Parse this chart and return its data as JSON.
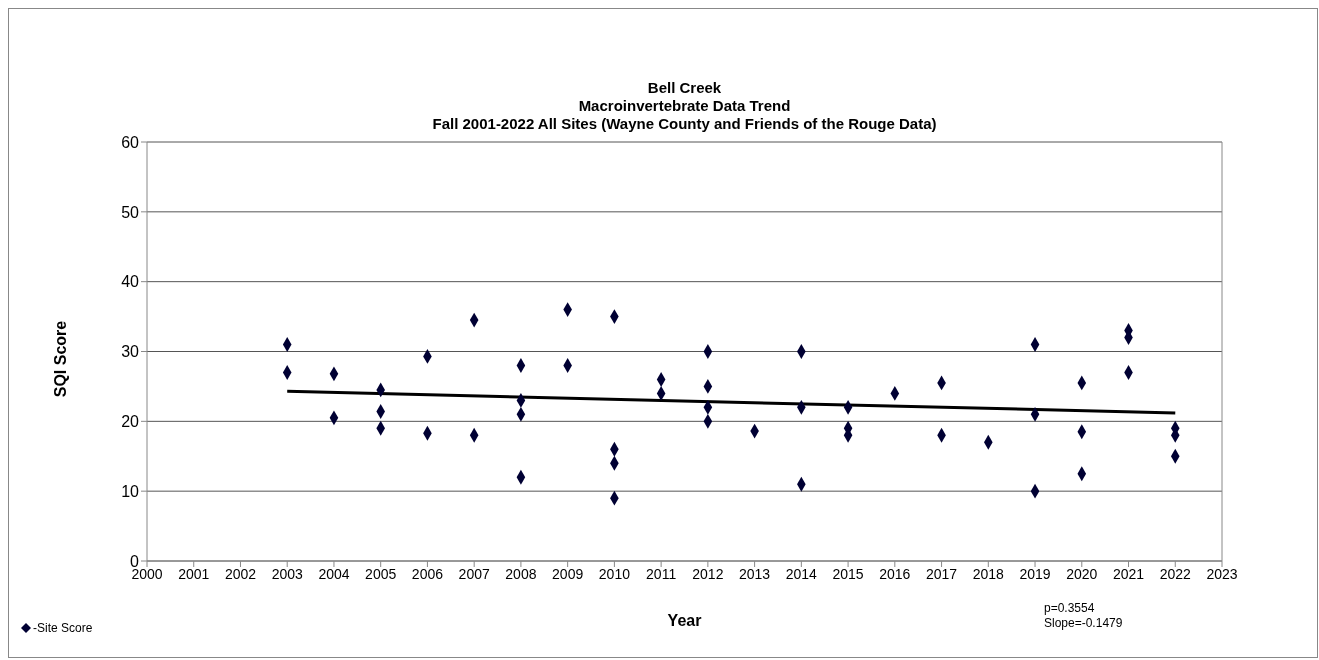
{
  "chart_data": {
    "type": "scatter",
    "title": "Bell Creek\nMacroinvertebrate Data Trend\nFall 2001-2022 All Sites (Wayne County and Friends of the Rouge Data)",
    "xlabel": "Year",
    "ylabel": "SQI Score",
    "xlim": [
      2000,
      2023
    ],
    "xticks": [
      2000,
      2001,
      2002,
      2003,
      2004,
      2005,
      2006,
      2007,
      2008,
      2009,
      2010,
      2011,
      2012,
      2013,
      2014,
      2015,
      2016,
      2017,
      2018,
      2019,
      2020,
      2021,
      2022,
      2023
    ],
    "ylim": [
      0,
      60
    ],
    "yticks": [
      0,
      10,
      20,
      30,
      40,
      50,
      60
    ],
    "grid": "y",
    "legend": "bottom left",
    "marker": "diamond",
    "series": [
      {
        "name": "-Site Score",
        "color": "#000033",
        "x": [
          2003,
          2003,
          2004,
          2004,
          2005,
          2005,
          2005,
          2006,
          2006,
          2007,
          2007,
          2008,
          2008,
          2008,
          2008,
          2009,
          2009,
          2010,
          2010,
          2010,
          2010,
          2011,
          2011,
          2012,
          2012,
          2012,
          2012,
          2013,
          2014,
          2014,
          2014,
          2015,
          2015,
          2015,
          2016,
          2017,
          2017,
          2018,
          2019,
          2019,
          2019,
          2020,
          2020,
          2020,
          2021,
          2021,
          2021,
          2022,
          2022,
          2022
        ],
        "values": [
          31,
          27,
          26.8,
          20.5,
          24.5,
          21.4,
          19,
          29.3,
          18.3,
          34.5,
          18,
          28,
          23,
          21,
          12,
          36,
          28,
          35,
          16,
          14,
          9,
          26,
          24,
          30,
          25,
          22,
          20,
          18.6,
          30,
          22,
          11,
          22,
          19,
          18,
          24,
          25.5,
          18,
          17,
          31,
          21,
          10,
          25.5,
          18.5,
          12.5,
          33,
          32,
          27,
          19,
          18,
          15
        ]
      },
      {
        "type": "line",
        "color": "#000000",
        "marker": "none",
        "line_style": "solid",
        "x": [
          2003,
          2022
        ],
        "values": [
          24.3,
          21.2
        ]
      }
    ],
    "annotations": [
      "p=0.3554",
      "Slope=-0.1479"
    ]
  }
}
